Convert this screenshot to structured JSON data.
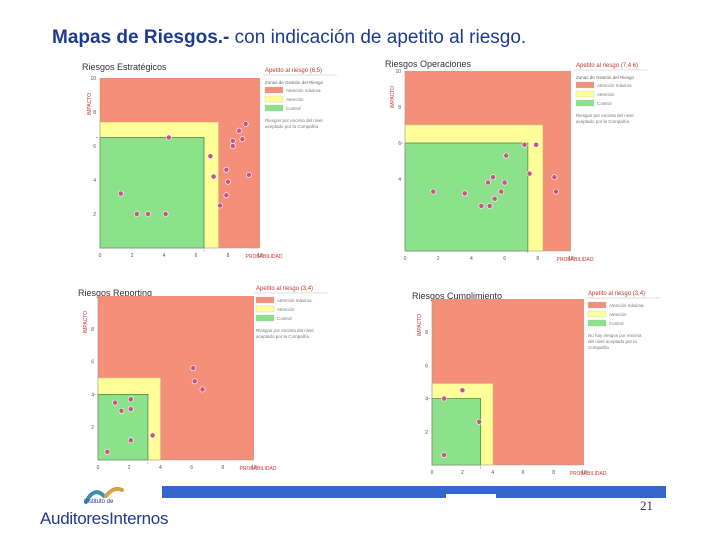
{
  "page": {
    "title_bold": "Mapas de Riesgos.-",
    "title_rest": " con indicación de apetito al riesgo.",
    "page_number": "21",
    "logo": {
      "line1": "Instituto de",
      "line2": "AuditoresInternos"
    }
  },
  "colors": {
    "red": "#f4907a",
    "yellow": "#ffff99",
    "green": "#8be28b",
    "accent": "#1f3a93",
    "bar": "#3366cc"
  },
  "chart_data": [
    {
      "type": "scatter",
      "title": "Riesgos Estratégicos",
      "xlabel": "PROBABILIDAD",
      "ylabel": "IMPACTO",
      "xlim": [
        0,
        10
      ],
      "ylim": [
        0,
        10
      ],
      "xticks": [
        "0",
        "2",
        "4",
        "6",
        "8",
        "10"
      ],
      "yticks": [
        "2",
        "4",
        "6",
        "8",
        "10"
      ],
      "zones": {
        "green": [
          6.5,
          6.5
        ],
        "yellow": [
          7.4,
          7.4
        ]
      },
      "appetite_label": "Apetito al riesgo (6,5)",
      "legend_header": "Zonas de Gestión del Riesgo",
      "legend": [
        "Atención máxima",
        "Atención",
        "Control"
      ],
      "note": "Riesgos por encima del nivel aceptado por la Compañía",
      "points": [
        {
          "x": 9.1,
          "y": 7.3,
          "label": ""
        },
        {
          "x": 8.7,
          "y": 6.9,
          "label": ""
        },
        {
          "x": 4.3,
          "y": 6.5,
          "label": ""
        },
        {
          "x": 8.3,
          "y": 6.3,
          "label": ""
        },
        {
          "x": 8.3,
          "y": 6.0,
          "label": ""
        },
        {
          "x": 8.9,
          "y": 6.4,
          "label": ""
        },
        {
          "x": 6.9,
          "y": 5.4,
          "label": ""
        },
        {
          "x": 7.9,
          "y": 4.6,
          "label": ""
        },
        {
          "x": 7.1,
          "y": 4.2,
          "label": ""
        },
        {
          "x": 9.3,
          "y": 4.3,
          "label": ""
        },
        {
          "x": 8.0,
          "y": 3.9,
          "label": ""
        },
        {
          "x": 1.3,
          "y": 3.2,
          "label": ""
        },
        {
          "x": 7.9,
          "y": 3.1,
          "label": ""
        },
        {
          "x": 7.5,
          "y": 2.5,
          "label": ""
        },
        {
          "x": 2.3,
          "y": 2.0,
          "label": ""
        },
        {
          "x": 3.0,
          "y": 2.0,
          "label": ""
        },
        {
          "x": 4.1,
          "y": 2.0,
          "label": ""
        }
      ]
    },
    {
      "type": "scatter",
      "title": "Riesgos Operaciones",
      "xlabel": "PROBABILIDAD",
      "ylabel": "IMPACTO",
      "xlim": [
        0,
        10
      ],
      "ylim": [
        0,
        10
      ],
      "xticks": [
        "0",
        "2",
        "4",
        "6",
        "8",
        "10"
      ],
      "yticks": [
        "4",
        "6",
        "8",
        "10"
      ],
      "zones": {
        "green": [
          7.4,
          6.0
        ],
        "yellow": [
          8.3,
          7.0
        ]
      },
      "appetite_label": "Apetito al riesgo (7,4 6)",
      "legend_header": "Zonas de Gestión del Riesgo",
      "legend": [
        "Atención máxima",
        "Atención",
        "Control"
      ],
      "note": "Riesgos por encima del nivel aceptado por la Compañía",
      "points": [
        {
          "x": 7.2,
          "y": 5.9,
          "label": ""
        },
        {
          "x": 7.9,
          "y": 5.9,
          "label": ""
        },
        {
          "x": 6.1,
          "y": 5.3,
          "label": ""
        },
        {
          "x": 7.5,
          "y": 4.3,
          "label": ""
        },
        {
          "x": 9.0,
          "y": 4.1,
          "label": ""
        },
        {
          "x": 5.3,
          "y": 4.1,
          "label": ""
        },
        {
          "x": 5.0,
          "y": 3.8,
          "label": ""
        },
        {
          "x": 6.0,
          "y": 3.8,
          "label": ""
        },
        {
          "x": 1.7,
          "y": 3.3,
          "label": ""
        },
        {
          "x": 3.6,
          "y": 3.2,
          "label": ""
        },
        {
          "x": 5.8,
          "y": 3.3,
          "label": ""
        },
        {
          "x": 9.1,
          "y": 3.3,
          "label": ""
        },
        {
          "x": 5.4,
          "y": 2.9,
          "label": ""
        },
        {
          "x": 4.6,
          "y": 2.5,
          "label": ""
        },
        {
          "x": 5.1,
          "y": 2.5,
          "label": ""
        }
      ]
    },
    {
      "type": "scatter",
      "title": "Riesgos Reporting",
      "xlabel": "PROBABILIDAD",
      "ylabel": "IMPACTO",
      "xlim": [
        0,
        10
      ],
      "ylim": [
        0,
        10
      ],
      "xticks": [
        "0",
        "2",
        "4",
        "6",
        "8",
        "10"
      ],
      "yticks": [
        "2",
        "4",
        "6",
        "8"
      ],
      "zones": {
        "green": [
          3.2,
          4.0
        ],
        "yellow": [
          4.0,
          5.0
        ]
      },
      "appetite_label": "Apetito al riesgo (3,4)",
      "legend_header": "",
      "legend": [
        "Atención máxima",
        "Atención",
        "Control"
      ],
      "note": "Riesgos por encima del nivel aceptado por la Compañía",
      "points": [
        {
          "x": 6.1,
          "y": 5.6,
          "label": ""
        },
        {
          "x": 6.2,
          "y": 4.8,
          "label": ""
        },
        {
          "x": 6.7,
          "y": 4.3,
          "label": ""
        },
        {
          "x": 2.1,
          "y": 3.7,
          "label": ""
        },
        {
          "x": 1.1,
          "y": 3.5,
          "label": ""
        },
        {
          "x": 1.5,
          "y": 3.0,
          "label": ""
        },
        {
          "x": 2.1,
          "y": 3.1,
          "label": ""
        },
        {
          "x": 3.5,
          "y": 1.5,
          "label": ""
        },
        {
          "x": 2.1,
          "y": 1.2,
          "label": ""
        },
        {
          "x": 0.6,
          "y": 0.5,
          "label": ""
        }
      ]
    },
    {
      "type": "scatter",
      "title": "Riesgos Cumplimiento",
      "xlabel": "PROBABILIDAD",
      "ylabel": "IMPACTO",
      "xlim": [
        0,
        10
      ],
      "ylim": [
        0,
        10
      ],
      "xticks": [
        "0",
        "2",
        "4",
        "6",
        "8",
        "10"
      ],
      "yticks": [
        "2",
        "4",
        "6",
        "8"
      ],
      "zones": {
        "green": [
          3.2,
          4.0
        ],
        "yellow": [
          4.0,
          4.9
        ]
      },
      "appetite_label": "Apetito al riesgo (3,4)",
      "legend_header": "",
      "legend": [
        "Atención máxima",
        "Atención",
        "Control"
      ],
      "note": "No hay riesgos por encima del nivel aceptado por la Compañía",
      "points": [
        {
          "x": 2.0,
          "y": 4.5,
          "label": ""
        },
        {
          "x": 0.8,
          "y": 4.0,
          "label": ""
        },
        {
          "x": 3.1,
          "y": 2.6,
          "label": ""
        },
        {
          "x": 0.8,
          "y": 0.6,
          "label": ""
        }
      ]
    }
  ]
}
